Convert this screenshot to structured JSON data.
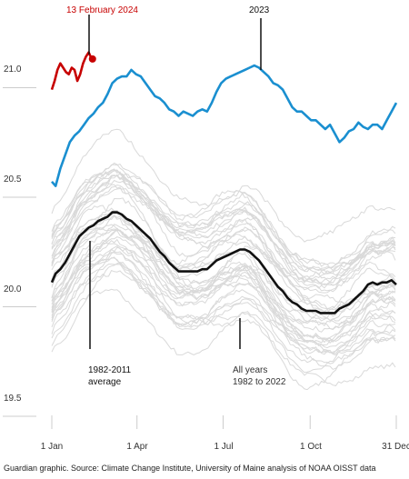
{
  "chart_data": {
    "type": "line",
    "title": "",
    "xlabel": "",
    "ylabel": "",
    "xlim_day": [
      1,
      366
    ],
    "ylim": [
      19.5,
      21.2
    ],
    "yticks": [
      19.5,
      20.0,
      20.5,
      21.0
    ],
    "ytick_labels": [
      "19.5",
      "20.0",
      "20.5",
      "21.0"
    ],
    "xticks": [
      {
        "label": "1 Jan",
        "day": 1
      },
      {
        "label": "1 Apr",
        "day": 91
      },
      {
        "label": "1 Jul",
        "day": 182
      },
      {
        "label": "1 Oct",
        "day": 274
      },
      {
        "label": "31 Dec",
        "day": 365
      }
    ],
    "grid": false,
    "series": [
      {
        "key": "y2024",
        "color": "#c70000",
        "x": [
          1,
          4,
          7,
          10,
          13,
          16,
          19,
          22,
          25,
          28,
          31,
          34,
          37,
          40,
          42,
          44
        ],
        "y": [
          20.9,
          20.94,
          20.99,
          21.02,
          21.0,
          20.98,
          20.97,
          21.0,
          20.99,
          20.94,
          20.97,
          21.02,
          21.05,
          21.07,
          21.05,
          21.04
        ]
      },
      {
        "key": "y2023",
        "color": "#1a8fd0",
        "x": [
          1,
          5,
          10,
          15,
          20,
          25,
          30,
          35,
          40,
          45,
          50,
          55,
          60,
          65,
          70,
          75,
          80,
          85,
          90,
          95,
          100,
          105,
          110,
          115,
          120,
          125,
          130,
          135,
          140,
          145,
          150,
          155,
          160,
          165,
          170,
          175,
          180,
          185,
          190,
          195,
          200,
          205,
          210,
          215,
          220,
          225,
          230,
          235,
          240,
          245,
          250,
          255,
          260,
          265,
          270,
          275,
          280,
          285,
          290,
          295,
          300,
          305,
          310,
          315,
          320,
          325,
          330,
          335,
          340,
          345,
          350,
          355,
          360,
          365
        ],
        "y": [
          20.48,
          20.46,
          20.54,
          20.6,
          20.66,
          20.69,
          20.71,
          20.74,
          20.77,
          20.79,
          20.82,
          20.84,
          20.88,
          20.93,
          20.95,
          20.96,
          20.96,
          20.99,
          20.97,
          20.96,
          20.93,
          20.9,
          20.87,
          20.86,
          20.84,
          20.81,
          20.8,
          20.78,
          20.8,
          20.79,
          20.78,
          20.8,
          20.81,
          20.8,
          20.84,
          20.89,
          20.93,
          20.95,
          20.96,
          20.97,
          20.98,
          20.99,
          21.0,
          21.01,
          21.0,
          20.98,
          20.96,
          20.93,
          20.92,
          20.9,
          20.86,
          20.82,
          20.8,
          20.8,
          20.78,
          20.76,
          20.76,
          20.74,
          20.72,
          20.74,
          20.7,
          20.66,
          20.68,
          20.71,
          20.72,
          20.75,
          20.73,
          20.72,
          20.74,
          20.74,
          20.72,
          20.76,
          20.8,
          20.84
        ]
      },
      {
        "key": "average",
        "color": "#111111",
        "x": [
          1,
          5,
          10,
          15,
          20,
          25,
          30,
          35,
          40,
          45,
          50,
          55,
          60,
          65,
          70,
          75,
          80,
          85,
          90,
          95,
          100,
          105,
          110,
          115,
          120,
          125,
          130,
          135,
          140,
          145,
          150,
          155,
          160,
          165,
          170,
          175,
          180,
          185,
          190,
          195,
          200,
          205,
          210,
          215,
          220,
          225,
          230,
          235,
          240,
          245,
          250,
          255,
          260,
          265,
          270,
          275,
          280,
          285,
          290,
          295,
          300,
          305,
          310,
          315,
          320,
          325,
          330,
          335,
          340,
          345,
          350,
          355,
          360,
          365
        ],
        "y": [
          20.02,
          20.06,
          20.08,
          20.11,
          20.15,
          20.19,
          20.23,
          20.25,
          20.27,
          20.28,
          20.3,
          20.31,
          20.32,
          20.34,
          20.34,
          20.33,
          20.31,
          20.3,
          20.28,
          20.26,
          20.24,
          20.22,
          20.19,
          20.16,
          20.14,
          20.11,
          20.09,
          20.07,
          20.07,
          20.07,
          20.07,
          20.07,
          20.08,
          20.08,
          20.1,
          20.12,
          20.13,
          20.14,
          20.15,
          20.16,
          20.17,
          20.17,
          20.16,
          20.14,
          20.12,
          20.09,
          20.06,
          20.03,
          20.0,
          19.98,
          19.95,
          19.93,
          19.92,
          19.9,
          19.89,
          19.89,
          19.89,
          19.88,
          19.88,
          19.88,
          19.88,
          19.9,
          19.91,
          19.92,
          19.94,
          19.96,
          19.98,
          20.01,
          20.02,
          20.01,
          20.02,
          20.02,
          20.03,
          20.01
        ]
      }
    ],
    "annotations": {
      "label_2024": "13 February 2024",
      "label_2023": "2023",
      "label_average_1": "1982-2011",
      "label_average_2": "average",
      "label_all_1": "All years",
      "label_all_2": "1982 to 2022"
    },
    "colors": {
      "background_years": "#d9d9d9",
      "axis_ticks": "#cccccc"
    }
  },
  "source": "Guardian graphic. Source: Climate Change Institute, University of Maine analysis of NOAA OISST data"
}
